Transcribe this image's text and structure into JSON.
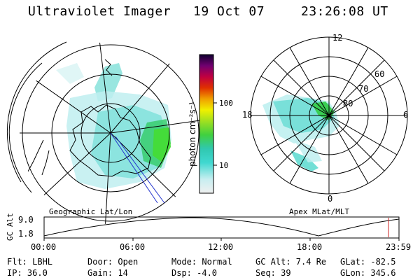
{
  "header": {
    "title": "Ultraviolet Imager",
    "date": "19 Oct 07",
    "time": "23:26:08 UT"
  },
  "colorbar": {
    "unit_label": "photon cm⁻²s⁻¹",
    "ticks": [
      "100",
      "10"
    ]
  },
  "left_map": {
    "caption": "Geographic Lat/Lon"
  },
  "right_map": {
    "caption": "Apex MLat/MLT",
    "mlt_labels": [
      "12",
      "18",
      "6",
      "0"
    ],
    "lat_labels": [
      "60",
      "70",
      "80"
    ]
  },
  "altitude_plot": {
    "ylabel": "GC Alt",
    "yticks": [
      "9.0",
      "1.8"
    ],
    "xticks": [
      "00:00",
      "06:00",
      "12:00",
      "18:00",
      "23:59"
    ]
  },
  "info": {
    "row1": {
      "flt": "Flt: LBHL",
      "door": "Door: Open",
      "mode": "Mode: Normal",
      "gcalt": "GC Alt: 7.4 Re",
      "glat": "GLat: -82.5"
    },
    "row2": {
      "ip": "IP: 36.0",
      "gain": "Gain: 14",
      "dsp": "Dsp:   -4.0",
      "seq": "Seq: 39",
      "glon": "GLon: 345.6"
    }
  },
  "colors": {
    "background": "#ffffff",
    "lines": "#000000",
    "aurora_cyan": "#59d9cf",
    "aurora_green": "#33cc33",
    "track_red": "#cc2222",
    "track_blue": "#2233cc"
  }
}
